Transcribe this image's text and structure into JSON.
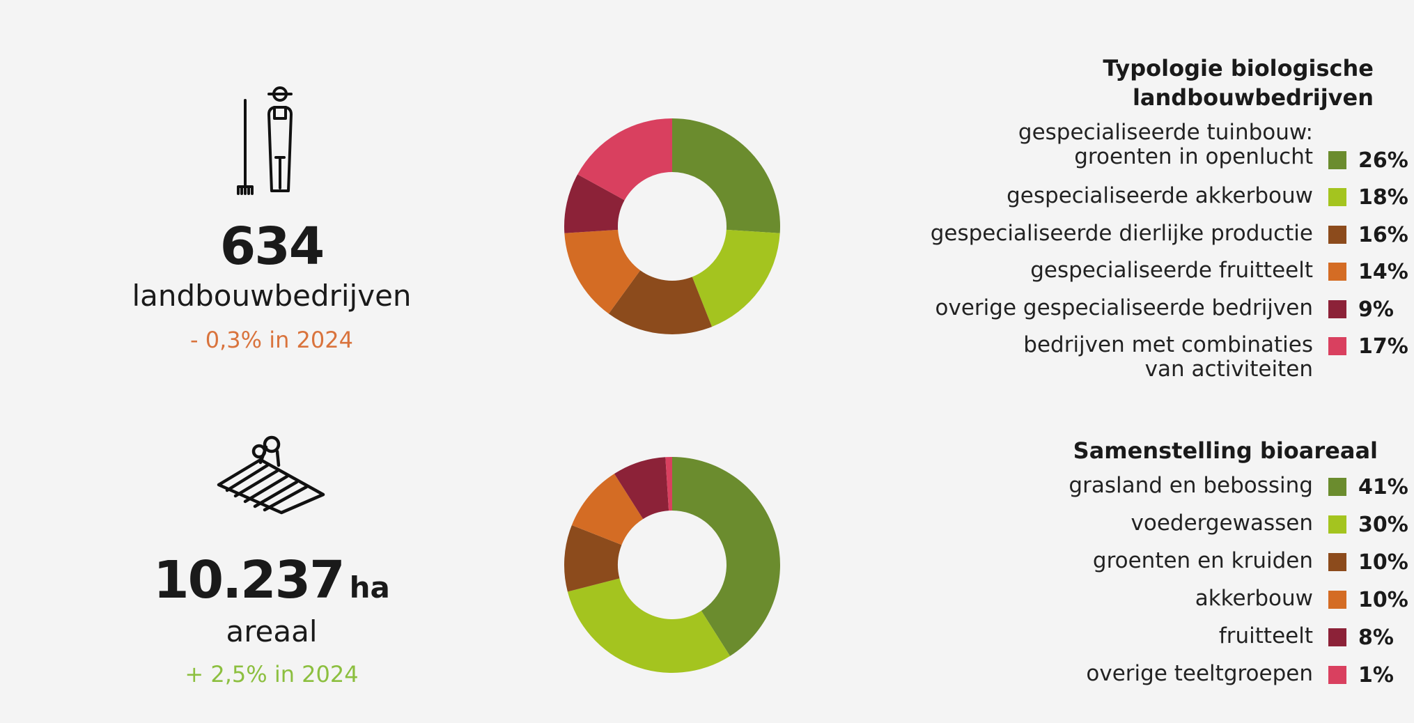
{
  "colors": {
    "green": "#6b8c2e",
    "lime": "#a4c41f",
    "brown": "#8c4b1c",
    "orange": "#d46c24",
    "maroon": "#8c2238",
    "pink": "#d9405f",
    "negative_change": "#d9733c",
    "positive_change": "#8cbf3f"
  },
  "stat1": {
    "icon": "farmer-with-pitchfork-icon",
    "value": "634",
    "label": "landbouwbedrijven",
    "change": "- 0,3% in 2024"
  },
  "stat2": {
    "icon": "plowed-field-icon",
    "value": "10.237",
    "unit": "ha",
    "label": "areaal",
    "change": "+ 2,5% in 2024"
  },
  "chart_data": [
    {
      "type": "pie",
      "title": "Typologie biologische landbouwbedrijven",
      "categories": [
        "gespecialiseerde tuinbouw: groenten in openlucht",
        "gespecialiseerde akkerbouw",
        "gespecialiseerde dierlijke productie",
        "gespecialiseerde fruitteelt",
        "overige gespecialiseerde bedrijven",
        "bedrijven met combinaties van activiteiten"
      ],
      "values": [
        26,
        18,
        16,
        14,
        9,
        17
      ],
      "value_labels": [
        "26%",
        "18%",
        "16%",
        "14%",
        "9%",
        "17%"
      ],
      "colors": [
        "#6b8c2e",
        "#a4c41f",
        "#8c4b1c",
        "#d46c24",
        "#8c2238",
        "#d9405f"
      ],
      "legend_placement": "right"
    },
    {
      "type": "pie",
      "title": "Samenstelling bioareaal",
      "categories": [
        "grasland en bebossing",
        "voedergewassen",
        "groenten en kruiden",
        "akkerbouw",
        "fruitteelt",
        "overige teeltgroepen"
      ],
      "values": [
        41,
        30,
        10,
        10,
        8,
        1
      ],
      "value_labels": [
        "41%",
        "30%",
        "10%",
        "10%",
        "8%",
        "1%"
      ],
      "colors": [
        "#6b8c2e",
        "#a4c41f",
        "#8c4b1c",
        "#d46c24",
        "#8c2238",
        "#d9405f"
      ],
      "legend_placement": "right"
    }
  ],
  "legend1": {
    "title_line1": "Typologie biologische",
    "title_line2": "landbouwbedrijven",
    "label0_line1": "gespecialiseerde tuinbouw:",
    "label0_line2": "groenten in openlucht",
    "label5_line1": "bedrijven met combinaties",
    "label5_line2": "van activiteiten"
  }
}
